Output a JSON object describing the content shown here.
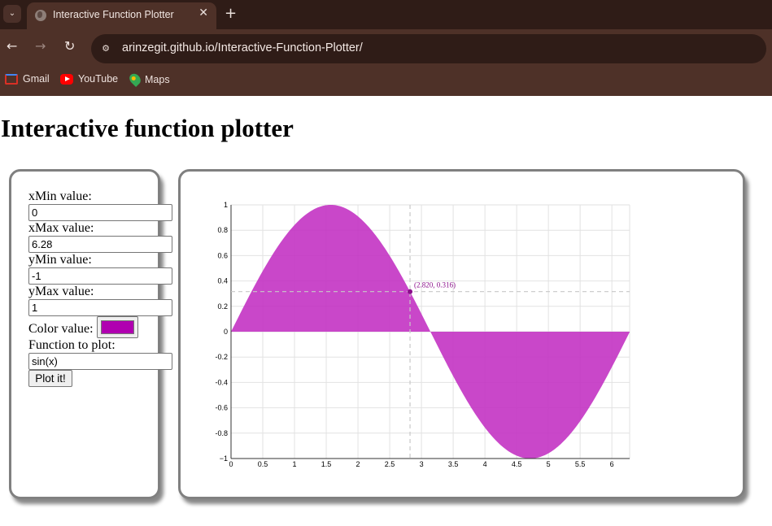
{
  "browser": {
    "tab_title": "Interactive Function Plotter",
    "url": "arinzegit.github.io/Interactive-Function-Plotter/",
    "bookmarks": [
      "Gmail",
      "YouTube",
      "Maps"
    ]
  },
  "page": {
    "title": "Interactive function plotter"
  },
  "controls": {
    "xmin_label": "xMin value:",
    "xmin_value": "0",
    "xmax_label": "xMax value:",
    "xmax_value": "6.28",
    "ymin_label": "yMin value:",
    "ymin_value": "-1",
    "ymax_label": "yMax value:",
    "ymax_value": "1",
    "color_label": "Color value:",
    "color_value": "#b000b0",
    "function_label": "Function to plot:",
    "function_value": "sin(x)",
    "plot_button": "Plot it!"
  },
  "chart_data": {
    "type": "area",
    "function": "sin(x)",
    "color": "#c12ec1",
    "xlim": [
      0,
      6.28
    ],
    "ylim": [
      -1,
      1
    ],
    "x_ticks": [
      "0",
      "0.5",
      "1",
      "1.5",
      "2",
      "2.5",
      "3",
      "3.5",
      "4",
      "4.5",
      "5",
      "5.5",
      "6"
    ],
    "y_ticks": [
      "1",
      "0.8",
      "0.6",
      "0.4",
      "0.2",
      "0",
      "-0.2",
      "-0.4",
      "-0.6",
      "-0.8",
      "−1"
    ],
    "grid": true,
    "tooltip": {
      "x": 2.82,
      "y": 0.316,
      "label": "(2.820, 0.316)"
    }
  }
}
